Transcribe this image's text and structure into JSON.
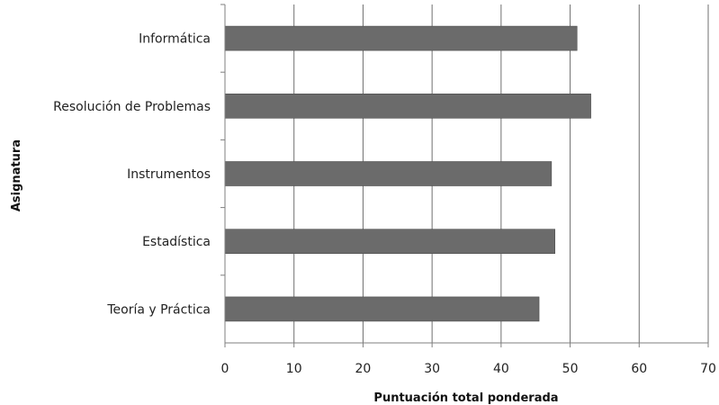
{
  "chart_data": {
    "type": "bar",
    "orientation": "horizontal",
    "categories": [
      "Informática",
      "Resolución de Problemas",
      "Instrumentos",
      "Estadística",
      "Teoría y Práctica"
    ],
    "values": [
      51,
      53,
      47.3,
      47.8,
      45.5
    ],
    "xlabel": "Puntuación  total ponderada",
    "ylabel": "Asignatura",
    "xlim": [
      0,
      70
    ],
    "xticks": [
      "0",
      "10",
      "20",
      "30",
      "40",
      "50",
      "60",
      "70"
    ],
    "grid": "vertical",
    "bar_color": "#6b6b6b"
  }
}
